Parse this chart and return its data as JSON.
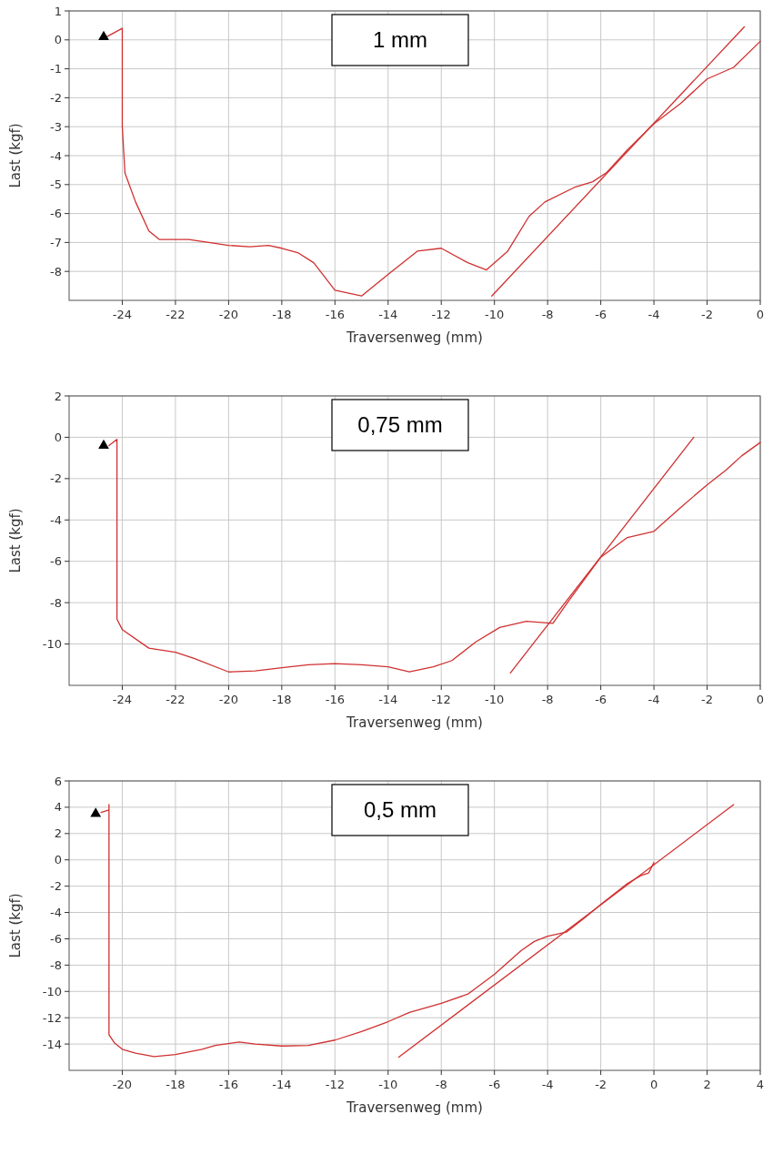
{
  "chart_data": [
    {
      "type": "line",
      "xlabel": "Traversenweg (mm)",
      "ylabel": "Last (kgf)",
      "annotations": [
        "1 mm"
      ],
      "xlim": [
        -26,
        0
      ],
      "ylim": [
        -9,
        1
      ],
      "xticks": [
        -24,
        -22,
        -20,
        -18,
        -16,
        -14,
        -12,
        -10,
        -8,
        -6,
        -4,
        -2,
        0
      ],
      "yticks": [
        1,
        0,
        -1,
        -2,
        -3,
        -4,
        -5,
        -6,
        -7,
        -8
      ],
      "grid": true,
      "marker": "none",
      "line_style": "solid",
      "series": [
        {
          "color": "#d03030",
          "x": [
            -24.6,
            -24.0,
            -24.0,
            -23.9,
            -23.5,
            -23.0,
            -22.6,
            -21.5,
            -20,
            -19.2,
            -18.5,
            -18,
            -17.4,
            -16.8,
            -16,
            -15,
            -14,
            -12.9,
            -12,
            -11,
            -10.3,
            -9.5,
            -8.7,
            -8.1,
            -7,
            -6.3,
            -5.8,
            -5,
            -4,
            -3,
            -2,
            -1,
            0
          ],
          "values": [
            0.1,
            0.4,
            -3,
            -4.6,
            -5.6,
            -6.6,
            -6.9,
            -6.9,
            -7.1,
            -7.15,
            -7.1,
            -7.2,
            -7.35,
            -7.7,
            -8.65,
            -8.85,
            -8.1,
            -7.3,
            -7.2,
            -7.7,
            -7.95,
            -7.3,
            -6.1,
            -5.6,
            -5.1,
            -4.9,
            -4.6,
            -3.8,
            -2.9,
            -2.2,
            -1.35,
            -0.95,
            -0.05
          ]
        },
        {
          "color": "#d03030",
          "x": [
            -10.1,
            -0.6
          ],
          "values": [
            -8.85,
            0.45
          ]
        },
        {
          "type": "scatter",
          "marker": "triangle",
          "color": "#000000",
          "x": [
            -24.7
          ],
          "values": [
            0.1
          ]
        }
      ]
    },
    {
      "type": "line",
      "xlabel": "Traversenweg (mm)",
      "ylabel": "Last (kgf)",
      "annotations": [
        "0,75 mm"
      ],
      "xlim": [
        -26,
        0
      ],
      "ylim": [
        -12,
        2
      ],
      "xticks": [
        -24,
        -22,
        -20,
        -18,
        -16,
        -14,
        -12,
        -10,
        -8,
        -6,
        -4,
        -2,
        0
      ],
      "yticks": [
        2,
        0,
        -2,
        -4,
        -6,
        -8,
        -10
      ],
      "grid": true,
      "marker": "none",
      "line_style": "solid",
      "series": [
        {
          "color": "#d03030",
          "x": [
            -24.5,
            -24.2,
            -24.2,
            -24.0,
            -23,
            -22,
            -21.3,
            -20,
            -19,
            -18,
            -17,
            -16,
            -15,
            -14,
            -13.2,
            -12.3,
            -11.6,
            -10.7,
            -9.8,
            -8.8,
            -7.8,
            -7.2,
            -6.0,
            -5,
            -4,
            -3,
            -2,
            -1.3,
            -0.7,
            0
          ],
          "values": [
            -0.4,
            -0.1,
            -8.8,
            -9.3,
            -10.2,
            -10.4,
            -10.7,
            -11.35,
            -11.3,
            -11.15,
            -11.0,
            -10.95,
            -11.0,
            -11.1,
            -11.35,
            -11.1,
            -10.8,
            -9.9,
            -9.2,
            -8.9,
            -9.0,
            -7.9,
            -5.8,
            -4.85,
            -4.55,
            -3.4,
            -2.3,
            -1.6,
            -0.9,
            -0.25
          ]
        },
        {
          "color": "#d03030",
          "x": [
            -9.4,
            -2.5
          ],
          "values": [
            -11.4,
            0
          ]
        },
        {
          "type": "scatter",
          "marker": "triangle",
          "color": "#000000",
          "x": [
            -24.7
          ],
          "values": [
            -0.4
          ]
        }
      ]
    },
    {
      "type": "line",
      "xlabel": "Traversenweg (mm)",
      "ylabel": "Last (kgf)",
      "annotations": [
        "0,5 mm"
      ],
      "xlim": [
        -22,
        4
      ],
      "ylim": [
        -16,
        6
      ],
      "xticks": [
        -20,
        -18,
        -16,
        -14,
        -12,
        -10,
        -8,
        -6,
        -4,
        -2,
        0,
        2,
        4
      ],
      "yticks": [
        6,
        4,
        2,
        0,
        -2,
        -4,
        -6,
        -8,
        -10,
        -12,
        -14
      ],
      "grid": true,
      "marker": "none",
      "line_style": "solid",
      "series": [
        {
          "color": "#d03030",
          "x": [
            -20.8,
            -20.5,
            -20.5,
            -20.5,
            -20.3,
            -20,
            -19.5,
            -18.8,
            -18,
            -17,
            -16.5,
            -15.6,
            -15,
            -14,
            -13,
            -12,
            -11,
            -10,
            -9.2,
            -8,
            -7,
            -6,
            -5,
            -4.5,
            -4,
            -3.3,
            -2.6,
            -2,
            -1,
            -0.5,
            -0.2,
            0
          ],
          "values": [
            3.6,
            3.8,
            4.2,
            -13.3,
            -13.9,
            -14.4,
            -14.7,
            -14.95,
            -14.8,
            -14.4,
            -14.1,
            -13.85,
            -14.0,
            -14.15,
            -14.1,
            -13.7,
            -13.05,
            -12.3,
            -11.6,
            -10.9,
            -10.2,
            -8.7,
            -6.9,
            -6.2,
            -5.8,
            -5.5,
            -4.4,
            -3.4,
            -1.8,
            -1.2,
            -1.0,
            -0.2
          ]
        },
        {
          "color": "#d03030",
          "x": [
            -9.6,
            3
          ],
          "values": [
            -15,
            4.2
          ]
        },
        {
          "type": "scatter",
          "marker": "triangle",
          "color": "#000000",
          "x": [
            -21
          ],
          "values": [
            3.5
          ]
        }
      ]
    }
  ]
}
